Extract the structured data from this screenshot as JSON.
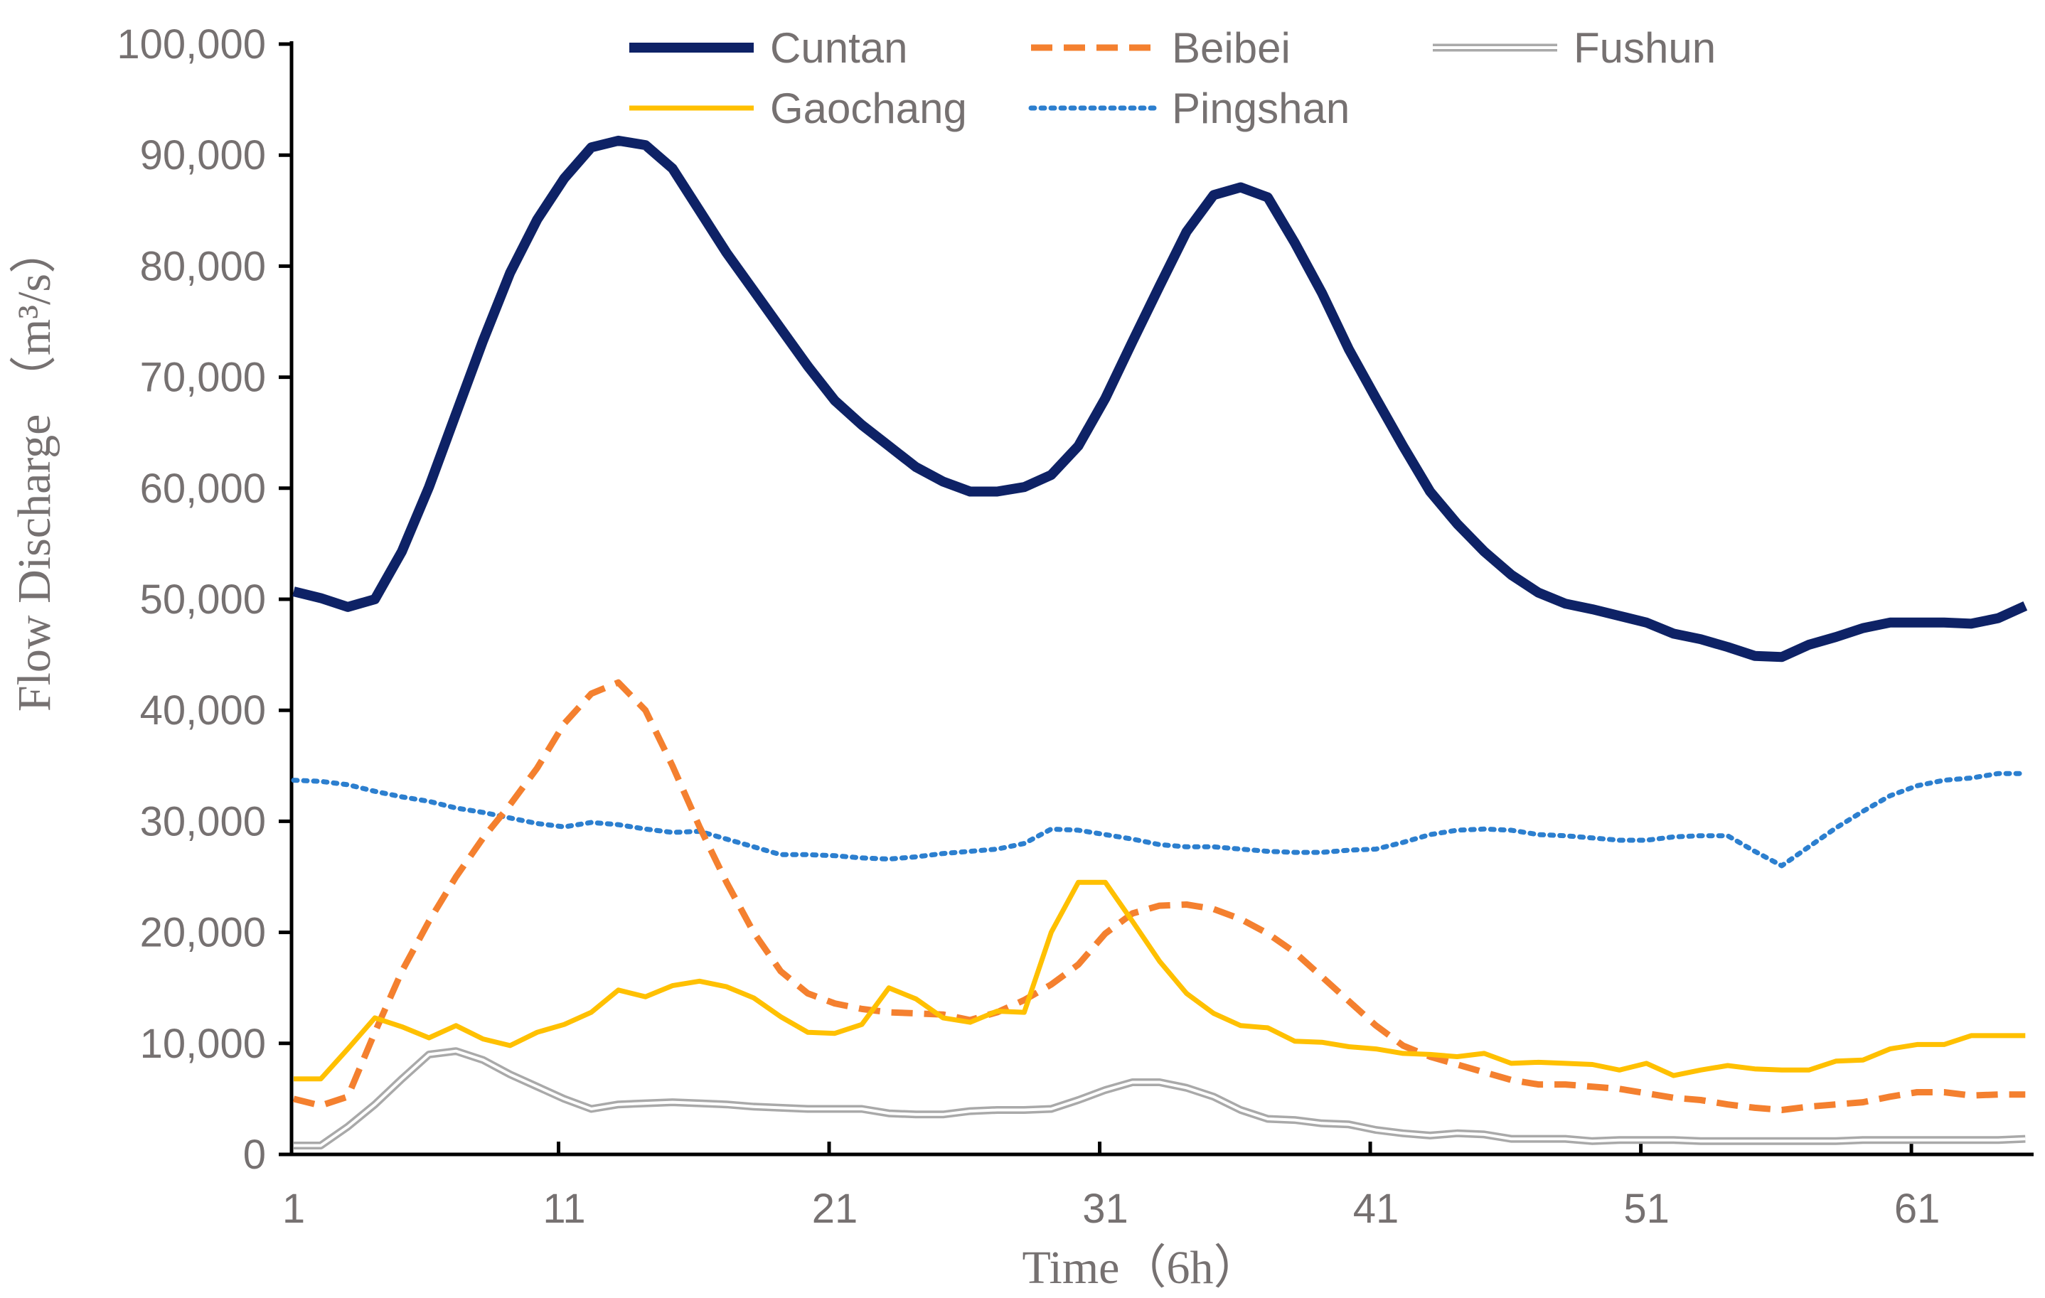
{
  "chart_data": {
    "type": "line",
    "title": "",
    "xlabel": "Time（6h）",
    "ylabel": "Flow Discharge （m³/s）",
    "xlim": [
      1,
      65
    ],
    "ylim": [
      0,
      100000
    ],
    "x_ticks": [
      1,
      11,
      21,
      31,
      41,
      51,
      61
    ],
    "x_tick_labels": [
      "1",
      "11",
      "21",
      "31",
      "41",
      "51",
      "61"
    ],
    "y_ticks": [
      0,
      10000,
      20000,
      30000,
      40000,
      50000,
      60000,
      70000,
      80000,
      90000,
      100000
    ],
    "y_tick_labels": [
      "0",
      "10,000",
      "20,000",
      "30,000",
      "40,000",
      "50,000",
      "60,000",
      "70,000",
      "80,000",
      "90,000",
      "100,000"
    ],
    "grid": false,
    "legend_position": "top",
    "series": [
      {
        "name": "Cuntan",
        "color": "#0e2266",
        "style": "solid-thick",
        "values": [
          50700,
          50100,
          49300,
          50000,
          54300,
          60100,
          66700,
          73300,
          79400,
          84200,
          87900,
          90700,
          91300,
          90900,
          88800,
          85000,
          81200,
          77800,
          74400,
          71000,
          67900,
          65700,
          63800,
          61900,
          60600,
          59700,
          59700,
          60100,
          61200,
          63800,
          68100,
          73200,
          78200,
          83100,
          86400,
          87100,
          86200,
          82100,
          77600,
          72500,
          68100,
          63800,
          59700,
          56800,
          54300,
          52200,
          50600,
          49600,
          49100,
          48500,
          47900,
          46900,
          46400,
          45700,
          44900,
          44800,
          45900,
          46600,
          47400,
          47900,
          47900,
          47900,
          47800,
          48300,
          49400
        ]
      },
      {
        "name": "Beibei",
        "color": "#f4802f",
        "style": "dashed",
        "values": [
          5000,
          4400,
          5200,
          11000,
          16500,
          21000,
          25000,
          28500,
          31500,
          34800,
          38800,
          41500,
          42500,
          40000,
          35000,
          29500,
          24500,
          20000,
          16500,
          14500,
          13600,
          13100,
          12800,
          12700,
          12600,
          12100,
          12800,
          13900,
          15300,
          17100,
          19900,
          21700,
          22400,
          22500,
          22100,
          21200,
          19900,
          18200,
          16000,
          13800,
          11600,
          9800,
          8800,
          8100,
          7400,
          6700,
          6300,
          6300,
          6100,
          5900,
          5500,
          5100,
          4900,
          4500,
          4200,
          4000,
          4300,
          4500,
          4700,
          5200,
          5600,
          5600,
          5300,
          5400,
          5400
        ]
      },
      {
        "name": "Fushun",
        "color": "#a9a9a9",
        "style": "double",
        "values": [
          800,
          800,
          2500,
          4500,
          6800,
          9000,
          9300,
          8500,
          7200,
          6100,
          5000,
          4100,
          4500,
          4600,
          4700,
          4600,
          4500,
          4300,
          4200,
          4100,
          4100,
          4100,
          3700,
          3600,
          3600,
          3900,
          4000,
          4000,
          4100,
          4900,
          5800,
          6500,
          6500,
          6000,
          5200,
          4000,
          3200,
          3100,
          2800,
          2700,
          2200,
          1900,
          1700,
          1900,
          1800,
          1400,
          1400,
          1400,
          1200,
          1300,
          1300,
          1300,
          1200,
          1200,
          1200,
          1200,
          1200,
          1200,
          1300,
          1300,
          1300,
          1300,
          1300,
          1300,
          1400
        ]
      },
      {
        "name": "Gaochang",
        "color": "#ffc000",
        "style": "solid",
        "values": [
          6800,
          6800,
          9500,
          12300,
          11500,
          10500,
          11600,
          10400,
          9800,
          11000,
          11700,
          12800,
          14800,
          14200,
          15200,
          15600,
          15100,
          14100,
          12400,
          11000,
          10900,
          11700,
          15000,
          14000,
          12300,
          11900,
          12900,
          12800,
          20000,
          24500,
          24500,
          21000,
          17400,
          14500,
          12700,
          11600,
          11400,
          10200,
          10100,
          9700,
          9500,
          9100,
          9000,
          8800,
          9100,
          8200,
          8300,
          8200,
          8100,
          7600,
          8200,
          7100,
          7600,
          8000,
          7700,
          7600,
          7600,
          8400,
          8500,
          9500,
          9900,
          9900,
          10700,
          10700,
          10700
        ]
      },
      {
        "name": "Pingshan",
        "color": "#2c7fcf",
        "style": "dotted",
        "values": [
          33700,
          33600,
          33300,
          32700,
          32200,
          31800,
          31200,
          30800,
          30300,
          29800,
          29500,
          29900,
          29700,
          29300,
          29000,
          29100,
          28400,
          27700,
          27000,
          27000,
          26900,
          26700,
          26600,
          26800,
          27100,
          27300,
          27500,
          28000,
          29300,
          29200,
          28800,
          28400,
          27900,
          27700,
          27700,
          27500,
          27300,
          27200,
          27200,
          27400,
          27500,
          28100,
          28800,
          29200,
          29300,
          29200,
          28800,
          28700,
          28500,
          28300,
          28300,
          28600,
          28700,
          28700,
          27300,
          26000,
          27700,
          29400,
          30900,
          32300,
          33200,
          33700,
          33900,
          34300,
          34300
        ]
      }
    ]
  }
}
